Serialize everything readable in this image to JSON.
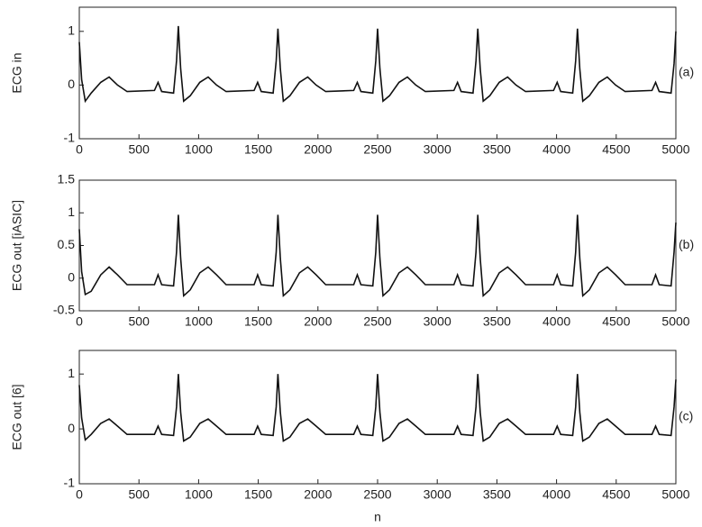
{
  "chart_data": [
    {
      "type": "line",
      "ylabel": "ECG in",
      "annotation": "(a)",
      "color": "#111111",
      "xlim": [
        0,
        5000
      ],
      "ylim": [
        -1,
        1.45
      ],
      "xticks": [
        0,
        500,
        1000,
        1500,
        2000,
        2500,
        3000,
        3500,
        4000,
        4500,
        5000
      ],
      "yticks": [
        -1,
        0,
        1
      ],
      "x": [
        0,
        20,
        50,
        100,
        180,
        250,
        320,
        400,
        630,
        660,
        690,
        790,
        815,
        830,
        850,
        875,
        930,
        1010,
        1080,
        1150,
        1230,
        1465,
        1495,
        1525,
        1625,
        1650,
        1665,
        1685,
        1710,
        1765,
        1845,
        1915,
        1985,
        2065,
        2300,
        2330,
        2360,
        2460,
        2485,
        2500,
        2520,
        2545,
        2600,
        2680,
        2750,
        2820,
        2900,
        3140,
        3170,
        3200,
        3300,
        3325,
        3340,
        3360,
        3385,
        3440,
        3520,
        3590,
        3660,
        3740,
        3975,
        4005,
        4035,
        4135,
        4160,
        4175,
        4195,
        4220,
        4275,
        4355,
        4425,
        4495,
        4575,
        4800,
        4830,
        4860,
        4960,
        4985,
        5000
      ],
      "values": [
        0.8,
        0.1,
        -0.3,
        -0.15,
        0.05,
        0.15,
        0.0,
        -0.12,
        -0.1,
        0.05,
        -0.12,
        -0.15,
        0.45,
        1.1,
        0.3,
        -0.3,
        -0.2,
        0.05,
        0.15,
        0.0,
        -0.12,
        -0.1,
        0.05,
        -0.12,
        -0.15,
        0.45,
        1.05,
        0.3,
        -0.3,
        -0.2,
        0.05,
        0.15,
        0.0,
        -0.12,
        -0.1,
        0.05,
        -0.12,
        -0.15,
        0.45,
        1.05,
        0.3,
        -0.3,
        -0.2,
        0.05,
        0.15,
        0.0,
        -0.12,
        -0.1,
        0.05,
        -0.12,
        -0.15,
        0.45,
        1.05,
        0.3,
        -0.3,
        -0.2,
        0.05,
        0.15,
        0.0,
        -0.12,
        -0.1,
        0.05,
        -0.12,
        -0.15,
        0.45,
        1.05,
        0.3,
        -0.3,
        -0.2,
        0.05,
        0.15,
        0.0,
        -0.12,
        -0.1,
        0.05,
        -0.12,
        -0.15,
        0.4,
        1.0
      ]
    },
    {
      "type": "line",
      "ylabel": "ECG out [iASIC]",
      "annotation": "(b)",
      "color": "#111111",
      "xlim": [
        0,
        5000
      ],
      "ylim": [
        -0.5,
        1.5
      ],
      "xticks": [
        0,
        500,
        1000,
        1500,
        2000,
        2500,
        3000,
        3500,
        4000,
        4500,
        5000
      ],
      "yticks": [
        -0.5,
        0,
        0.5,
        1,
        1.5
      ],
      "x": [
        0,
        20,
        50,
        100,
        180,
        250,
        320,
        400,
        630,
        660,
        690,
        790,
        815,
        830,
        850,
        875,
        930,
        1010,
        1080,
        1150,
        1230,
        1465,
        1495,
        1525,
        1625,
        1650,
        1665,
        1685,
        1710,
        1765,
        1845,
        1915,
        1985,
        2065,
        2300,
        2330,
        2360,
        2460,
        2485,
        2500,
        2520,
        2545,
        2600,
        2680,
        2750,
        2820,
        2900,
        3140,
        3170,
        3200,
        3300,
        3325,
        3340,
        3360,
        3385,
        3440,
        3520,
        3590,
        3660,
        3740,
        3975,
        4005,
        4035,
        4135,
        4160,
        4175,
        4195,
        4220,
        4275,
        4355,
        4425,
        4495,
        4575,
        4800,
        4830,
        4860,
        4960,
        4985,
        5000
      ],
      "values": [
        0.75,
        0.1,
        -0.25,
        -0.2,
        0.05,
        0.17,
        0.05,
        -0.1,
        -0.1,
        0.05,
        -0.1,
        -0.12,
        0.4,
        0.97,
        0.3,
        -0.27,
        -0.18,
        0.08,
        0.17,
        0.05,
        -0.1,
        -0.1,
        0.05,
        -0.1,
        -0.12,
        0.4,
        0.97,
        0.3,
        -0.27,
        -0.18,
        0.08,
        0.17,
        0.05,
        -0.1,
        -0.1,
        0.05,
        -0.1,
        -0.12,
        0.4,
        0.97,
        0.3,
        -0.27,
        -0.18,
        0.08,
        0.17,
        0.05,
        -0.1,
        -0.1,
        0.05,
        -0.1,
        -0.12,
        0.4,
        0.97,
        0.3,
        -0.27,
        -0.18,
        0.08,
        0.17,
        0.05,
        -0.1,
        -0.1,
        0.05,
        -0.1,
        -0.12,
        0.4,
        0.97,
        0.3,
        -0.27,
        -0.18,
        0.08,
        0.17,
        0.05,
        -0.1,
        -0.1,
        0.05,
        -0.1,
        -0.12,
        0.4,
        0.85
      ]
    },
    {
      "type": "line",
      "ylabel": "ECG out [6]",
      "annotation": "(c)",
      "xlabel": "n",
      "color": "#111111",
      "xlim": [
        0,
        5000
      ],
      "ylim": [
        -1,
        1.43
      ],
      "xticks": [
        0,
        500,
        1000,
        1500,
        2000,
        2500,
        3000,
        3500,
        4000,
        4500,
        5000
      ],
      "yticks": [
        -1,
        0,
        1
      ],
      "x": [
        0,
        20,
        50,
        100,
        180,
        250,
        320,
        400,
        630,
        660,
        690,
        790,
        815,
        830,
        850,
        875,
        930,
        1010,
        1080,
        1150,
        1230,
        1465,
        1495,
        1525,
        1625,
        1650,
        1665,
        1685,
        1710,
        1765,
        1845,
        1915,
        1985,
        2065,
        2300,
        2330,
        2360,
        2460,
        2485,
        2500,
        2520,
        2545,
        2600,
        2680,
        2750,
        2820,
        2900,
        3140,
        3170,
        3200,
        3300,
        3325,
        3340,
        3360,
        3385,
        3440,
        3520,
        3590,
        3660,
        3740,
        3975,
        4005,
        4035,
        4135,
        4160,
        4175,
        4195,
        4220,
        4275,
        4355,
        4425,
        4495,
        4575,
        4800,
        4830,
        4860,
        4960,
        4985,
        5000
      ],
      "values": [
        0.8,
        0.2,
        -0.2,
        -0.1,
        0.1,
        0.18,
        0.05,
        -0.1,
        -0.1,
        0.05,
        -0.1,
        -0.12,
        0.4,
        1.0,
        0.3,
        -0.22,
        -0.15,
        0.1,
        0.18,
        0.05,
        -0.1,
        -0.1,
        0.05,
        -0.1,
        -0.12,
        0.4,
        1.0,
        0.3,
        -0.22,
        -0.15,
        0.1,
        0.18,
        0.05,
        -0.1,
        -0.1,
        0.05,
        -0.1,
        -0.12,
        0.4,
        1.0,
        0.3,
        -0.22,
        -0.15,
        0.1,
        0.18,
        0.05,
        -0.1,
        -0.1,
        0.05,
        -0.1,
        -0.12,
        0.4,
        1.0,
        0.3,
        -0.22,
        -0.15,
        0.1,
        0.18,
        0.05,
        -0.1,
        -0.1,
        0.05,
        -0.1,
        -0.12,
        0.4,
        1.0,
        0.3,
        -0.22,
        -0.15,
        0.1,
        0.18,
        0.05,
        -0.1,
        -0.1,
        0.05,
        -0.1,
        -0.12,
        0.4,
        0.9
      ]
    }
  ]
}
